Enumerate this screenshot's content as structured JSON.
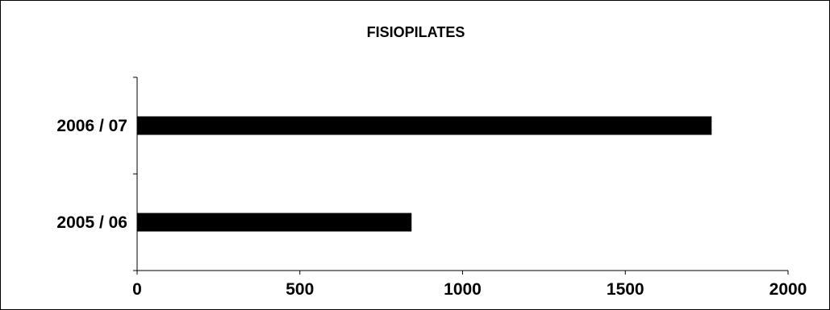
{
  "chart_data": {
    "type": "bar",
    "orientation": "horizontal",
    "title": "FISIOPILATES",
    "xlabel": "",
    "ylabel": "",
    "categories": [
      "2005 / 06",
      "2006 / 07"
    ],
    "values": [
      842,
      1764
    ],
    "xlim": [
      0,
      2000
    ],
    "xticks": [
      0,
      500,
      1000,
      1500,
      2000
    ],
    "grid": false,
    "legend": "none",
    "bar_color": "#000000"
  }
}
